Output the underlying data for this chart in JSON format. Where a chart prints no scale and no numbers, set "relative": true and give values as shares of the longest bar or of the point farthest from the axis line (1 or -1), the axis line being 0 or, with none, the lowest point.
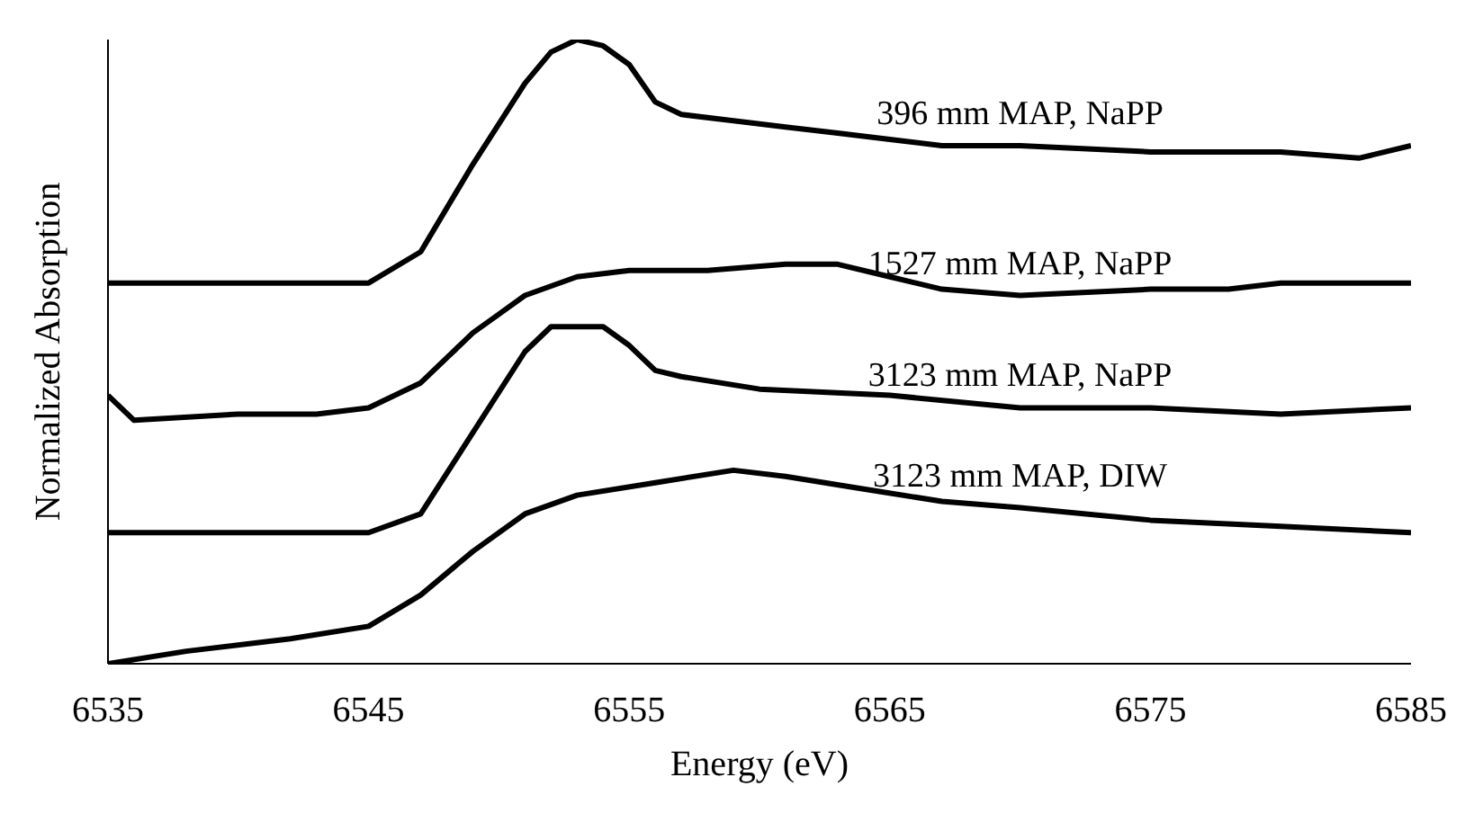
{
  "chart_data": {
    "type": "line",
    "xlabel": "Energy (eV)",
    "ylabel": "Normalized Absorption",
    "relative": true,
    "xlim": [
      6535,
      6585
    ],
    "xticks": [
      6535,
      6545,
      6555,
      6565,
      6575,
      6585
    ],
    "legend": false,
    "grid": false,
    "marker": "none",
    "line_style": "solid",
    "series": [
      {
        "name": "396 mm MAP, NaPP",
        "color": "#000000",
        "x": [
          6535,
          6545,
          6547,
          6549,
          6551,
          6552,
          6553,
          6554,
          6555,
          6556,
          6557,
          6559,
          6561,
          6563,
          6565,
          6567,
          6570,
          6575,
          6580,
          6583,
          6584,
          6585
        ],
        "values": [
          0.61,
          0.61,
          0.66,
          0.8,
          0.93,
          0.98,
          1.0,
          0.99,
          0.96,
          0.9,
          0.88,
          0.87,
          0.86,
          0.85,
          0.84,
          0.83,
          0.83,
          0.82,
          0.82,
          0.81,
          0.82,
          0.83
        ]
      },
      {
        "name": "1527 mm MAP, NaPP",
        "color": "#000000",
        "x": [
          6535,
          6536,
          6540,
          6543,
          6545,
          6547,
          6548,
          6549,
          6550,
          6551,
          6553,
          6555,
          6558,
          6561,
          6563,
          6565,
          6567,
          6570,
          6575,
          6578,
          6580,
          6585
        ],
        "values": [
          0.43,
          0.39,
          0.4,
          0.4,
          0.41,
          0.45,
          0.49,
          0.53,
          0.56,
          0.59,
          0.62,
          0.63,
          0.63,
          0.64,
          0.64,
          0.62,
          0.6,
          0.59,
          0.6,
          0.6,
          0.61,
          0.61
        ]
      },
      {
        "name": "3123 mm MAP, NaPP",
        "color": "#000000",
        "x": [
          6535,
          6545,
          6547,
          6549,
          6551,
          6552,
          6553,
          6554,
          6555,
          6556,
          6557,
          6560,
          6565,
          6570,
          6575,
          6580,
          6585
        ],
        "values": [
          0.21,
          0.21,
          0.24,
          0.37,
          0.5,
          0.54,
          0.54,
          0.54,
          0.51,
          0.47,
          0.46,
          0.44,
          0.43,
          0.41,
          0.41,
          0.4,
          0.41
        ]
      },
      {
        "name": "3123 mm MAP, DIW",
        "color": "#000000",
        "x": [
          6535,
          6538,
          6542,
          6545,
          6547,
          6549,
          6551,
          6553,
          6556,
          6559,
          6561,
          6564,
          6567,
          6570,
          6575,
          6580,
          6585
        ],
        "values": [
          0,
          0.02,
          0.04,
          0.06,
          0.11,
          0.18,
          0.24,
          0.27,
          0.29,
          0.31,
          0.3,
          0.28,
          0.26,
          0.25,
          0.23,
          0.22,
          0.21
        ]
      }
    ]
  }
}
